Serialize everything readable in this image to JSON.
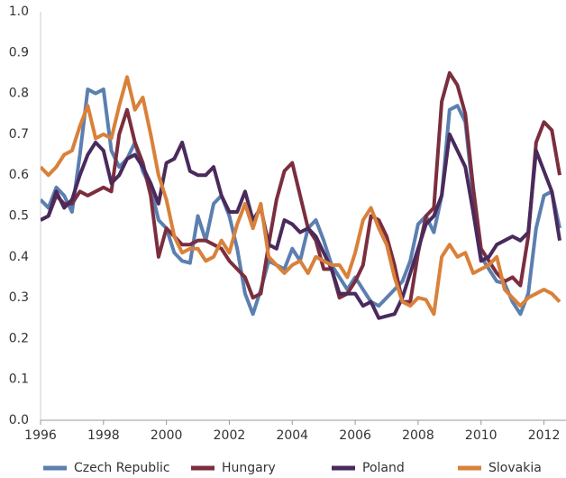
{
  "chart_data": {
    "type": "line",
    "x": [
      1996,
      1996.25,
      1996.5,
      1996.75,
      1997,
      1997.25,
      1997.5,
      1997.75,
      1998,
      1998.25,
      1998.5,
      1998.75,
      1999,
      1999.25,
      1999.5,
      1999.75,
      2000,
      2000.25,
      2000.5,
      2000.75,
      2001,
      2001.25,
      2001.5,
      2001.75,
      2002,
      2002.25,
      2002.5,
      2002.75,
      2003,
      2003.25,
      2003.5,
      2003.75,
      2004,
      2004.25,
      2004.5,
      2004.75,
      2005,
      2005.25,
      2005.5,
      2005.75,
      2006,
      2006.25,
      2006.5,
      2006.75,
      2007,
      2007.25,
      2007.5,
      2007.75,
      2008,
      2008.25,
      2008.5,
      2008.75,
      2009,
      2009.25,
      2009.5,
      2009.75,
      2010,
      2010.25,
      2010.5,
      2010.75,
      2011,
      2011.25,
      2011.5,
      2011.75,
      2012,
      2012.25,
      2012.5
    ],
    "series": [
      {
        "name": "Czech Republic",
        "color": "#5b7fb0",
        "values": [
          0.54,
          0.52,
          0.57,
          0.55,
          0.51,
          0.65,
          0.81,
          0.8,
          0.81,
          0.66,
          0.62,
          0.64,
          0.68,
          0.61,
          0.57,
          0.49,
          0.47,
          0.41,
          0.39,
          0.385,
          0.5,
          0.44,
          0.53,
          0.55,
          0.5,
          0.42,
          0.31,
          0.26,
          0.32,
          0.39,
          0.38,
          0.37,
          0.42,
          0.39,
          0.47,
          0.49,
          0.44,
          0.38,
          0.35,
          0.32,
          0.35,
          0.32,
          0.29,
          0.28,
          0.3,
          0.32,
          0.34,
          0.39,
          0.48,
          0.5,
          0.46,
          0.55,
          0.76,
          0.77,
          0.73,
          0.55,
          0.4,
          0.37,
          0.34,
          0.335,
          0.29,
          0.26,
          0.31,
          0.47,
          0.55,
          0.56,
          0.47
        ]
      },
      {
        "name": "Hungary",
        "color": "#7b2e3e",
        "values": [
          0.49,
          0.5,
          0.55,
          0.53,
          0.53,
          0.56,
          0.55,
          0.56,
          0.57,
          0.56,
          0.7,
          0.76,
          0.68,
          0.63,
          0.55,
          0.4,
          0.47,
          0.45,
          0.43,
          0.43,
          0.44,
          0.44,
          0.43,
          0.42,
          0.39,
          0.37,
          0.35,
          0.3,
          0.31,
          0.43,
          0.54,
          0.61,
          0.63,
          0.55,
          0.47,
          0.44,
          0.37,
          0.37,
          0.3,
          0.31,
          0.34,
          0.38,
          0.5,
          0.49,
          0.45,
          0.38,
          0.29,
          0.29,
          0.41,
          0.5,
          0.52,
          0.78,
          0.85,
          0.82,
          0.75,
          0.57,
          0.42,
          0.39,
          0.36,
          0.34,
          0.35,
          0.33,
          0.45,
          0.68,
          0.73,
          0.71,
          0.6
        ]
      },
      {
        "name": "Poland",
        "color": "#4a2a5c",
        "values": [
          0.49,
          0.5,
          0.56,
          0.52,
          0.54,
          0.6,
          0.65,
          0.68,
          0.66,
          0.58,
          0.6,
          0.64,
          0.65,
          0.62,
          0.58,
          0.53,
          0.63,
          0.64,
          0.68,
          0.61,
          0.6,
          0.6,
          0.62,
          0.55,
          0.51,
          0.51,
          0.56,
          0.49,
          0.52,
          0.43,
          0.42,
          0.49,
          0.48,
          0.46,
          0.47,
          0.45,
          0.41,
          0.37,
          0.31,
          0.31,
          0.31,
          0.28,
          0.29,
          0.25,
          0.255,
          0.26,
          0.3,
          0.36,
          0.42,
          0.48,
          0.5,
          0.55,
          0.7,
          0.66,
          0.62,
          0.51,
          0.39,
          0.4,
          0.43,
          0.44,
          0.45,
          0.44,
          0.46,
          0.66,
          0.61,
          0.56,
          0.44
        ]
      },
      {
        "name": "Slovakia",
        "color": "#d9813a",
        "values": [
          0.62,
          0.6,
          0.62,
          0.65,
          0.66,
          0.72,
          0.77,
          0.69,
          0.7,
          0.69,
          0.77,
          0.84,
          0.76,
          0.79,
          0.7,
          0.6,
          0.54,
          0.45,
          0.41,
          0.42,
          0.42,
          0.39,
          0.4,
          0.44,
          0.41,
          0.48,
          0.53,
          0.47,
          0.53,
          0.4,
          0.38,
          0.36,
          0.38,
          0.39,
          0.36,
          0.4,
          0.39,
          0.38,
          0.38,
          0.35,
          0.41,
          0.49,
          0.52,
          0.47,
          0.43,
          0.35,
          0.29,
          0.28,
          0.3,
          0.295,
          0.26,
          0.4,
          0.43,
          0.4,
          0.41,
          0.36,
          0.37,
          0.38,
          0.4,
          0.32,
          0.3,
          0.28,
          0.3,
          0.31,
          0.32,
          0.31,
          0.29
        ]
      }
    ],
    "xlim": [
      1996,
      2012.7
    ],
    "xticks": [
      1996,
      1998,
      2000,
      2002,
      2004,
      2006,
      2008,
      2010,
      2012
    ],
    "ylim": [
      0,
      1
    ],
    "yticks": [
      {
        "value": 0,
        "label": "0.0"
      },
      0.1,
      0.2,
      0.3,
      0.4,
      0.5,
      0.6,
      0.7,
      0.8,
      0.9,
      {
        "value": 1,
        "label": "1.0"
      }
    ],
    "legend": "bottom"
  }
}
